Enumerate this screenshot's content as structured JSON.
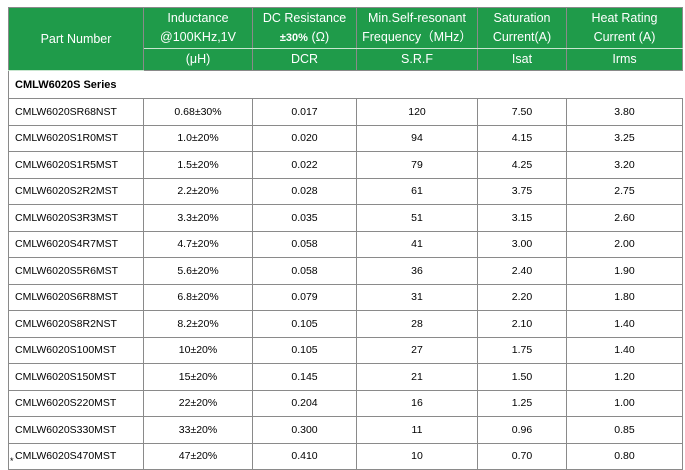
{
  "table": {
    "headers": {
      "part_number": "Part Number",
      "inductance_line1": "Inductance",
      "inductance_line2": "@100KHz,1V",
      "inductance_unit": "(μH)",
      "dcr_line1": "DC Resistance",
      "dcr_tolerance": "±30%",
      "dcr_unit": "(Ω)",
      "dcr_sub": "DCR",
      "srf_line1": "Min.Self-resonant",
      "srf_line2": "Frequency（MHz）",
      "srf_sub": "S.R.F",
      "isat_line1": "Saturation",
      "isat_line2": "Current(A)",
      "isat_sub": "Isat",
      "irms_line1": "Heat Rating",
      "irms_line2": "Current (A)",
      "irms_sub": "Irms"
    },
    "series_label": "CMLW6020S Series",
    "rows": [
      {
        "part": "CMLW6020SR68NST",
        "inductance": "0.68±30%",
        "dcr": "0.017",
        "srf": "120",
        "isat": "7.50",
        "irms": "3.80"
      },
      {
        "part": "CMLW6020S1R0MST",
        "inductance": "1.0±20%",
        "dcr": "0.020",
        "srf": "94",
        "isat": "4.15",
        "irms": "3.25"
      },
      {
        "part": "CMLW6020S1R5MST",
        "inductance": "1.5±20%",
        "dcr": "0.022",
        "srf": "79",
        "isat": "4.25",
        "irms": "3.20"
      },
      {
        "part": "CMLW6020S2R2MST",
        "inductance": "2.2±20%",
        "dcr": "0.028",
        "srf": "61",
        "isat": "3.75",
        "irms": "2.75"
      },
      {
        "part": "CMLW6020S3R3MST",
        "inductance": "3.3±20%",
        "dcr": "0.035",
        "srf": "51",
        "isat": "3.15",
        "irms": "2.60"
      },
      {
        "part": "CMLW6020S4R7MST",
        "inductance": "4.7±20%",
        "dcr": "0.058",
        "srf": "41",
        "isat": "3.00",
        "irms": "2.00"
      },
      {
        "part": "CMLW6020S5R6MST",
        "inductance": "5.6±20%",
        "dcr": "0.058",
        "srf": "36",
        "isat": "2.40",
        "irms": "1.90"
      },
      {
        "part": "CMLW6020S6R8MST",
        "inductance": "6.8±20%",
        "dcr": "0.079",
        "srf": "31",
        "isat": "2.20",
        "irms": "1.80"
      },
      {
        "part": "CMLW6020S8R2NST",
        "inductance": "8.2±20%",
        "dcr": "0.105",
        "srf": "28",
        "isat": "2.10",
        "irms": "1.40"
      },
      {
        "part": "CMLW6020S100MST",
        "inductance": "10±20%",
        "dcr": "0.105",
        "srf": "27",
        "isat": "1.75",
        "irms": "1.40"
      },
      {
        "part": "CMLW6020S150MST",
        "inductance": "15±20%",
        "dcr": "0.145",
        "srf": "21",
        "isat": "1.50",
        "irms": "1.20"
      },
      {
        "part": "CMLW6020S220MST",
        "inductance": "22±20%",
        "dcr": "0.204",
        "srf": "16",
        "isat": "1.25",
        "irms": "1.00"
      },
      {
        "part": "CMLW6020S330MST",
        "inductance": "33±20%",
        "dcr": "0.300",
        "srf": "11",
        "isat": "0.96",
        "irms": "0.85"
      },
      {
        "part": "CMLW6020S470MST",
        "inductance": "47±20%",
        "dcr": "0.410",
        "srf": "10",
        "isat": "0.70",
        "irms": "0.80"
      }
    ]
  },
  "colors": {
    "header_green": "#1f9b4a",
    "grid": "#8a8a8a"
  }
}
